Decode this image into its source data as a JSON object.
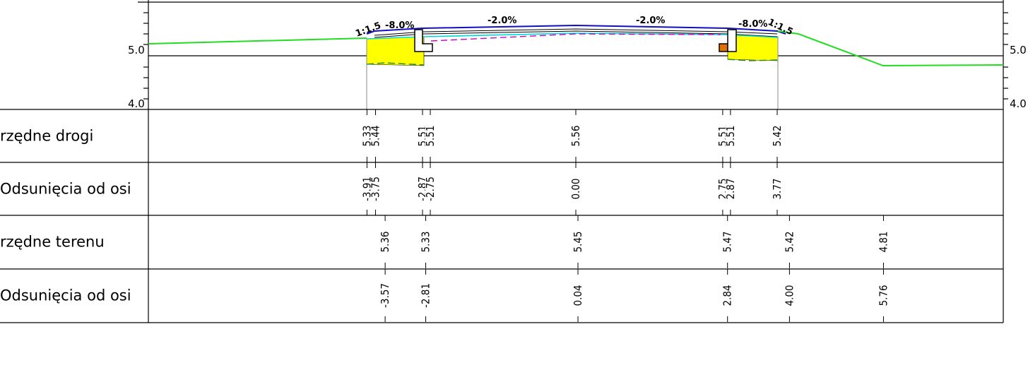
{
  "profile": {
    "elevation_axis": {
      "left_labels": [
        "5.0",
        "4.0"
      ],
      "right_labels": [
        "5.0",
        "4.0"
      ]
    },
    "slope_labels": [
      "1:1.5",
      "-8.0%",
      "-2.0%",
      "-2.0%",
      "-8.0%",
      "1:1.5"
    ]
  },
  "table": {
    "rows": [
      {
        "label": "rzędne drogi",
        "values": [
          "5.33",
          "5.44",
          "5.51",
          "5.51",
          "5.56",
          "5.51",
          "5.51",
          "5.42"
        ],
        "offsets": [
          -3.91,
          -3.75,
          -2.87,
          -2.75,
          0.0,
          2.75,
          2.87,
          3.77
        ]
      },
      {
        "label": "Odsunięcia od osi",
        "values": [
          "-3.91",
          "-3.75",
          "-2.87",
          "-2.75",
          "0.00",
          "2.75",
          "2.87",
          "3.77"
        ],
        "offsets": [
          -3.91,
          -3.75,
          -2.87,
          -2.75,
          0.0,
          2.75,
          2.87,
          3.77
        ]
      },
      {
        "label": "rzędne terenu",
        "values": [
          "5.36",
          "5.33",
          "5.45",
          "5.47",
          "5.42",
          "4.81"
        ],
        "offsets": [
          -3.57,
          -2.81,
          0.04,
          2.84,
          4.0,
          5.76
        ]
      },
      {
        "label": "Odsunięcia od osi",
        "values": [
          "-3.57",
          "-2.81",
          "0.04",
          "2.84",
          "4.00",
          "5.76"
        ],
        "offsets": [
          -3.57,
          -2.81,
          0.04,
          2.84,
          4.0,
          5.76
        ]
      }
    ]
  },
  "colors": {
    "road_top": "#1010c0",
    "terrain": "#22dd22",
    "fill_yellow": "#ffff00",
    "cyan_layer": "#00d8d8",
    "magenta_layer": "#cc00cc",
    "curb_orange": "#e07000"
  }
}
